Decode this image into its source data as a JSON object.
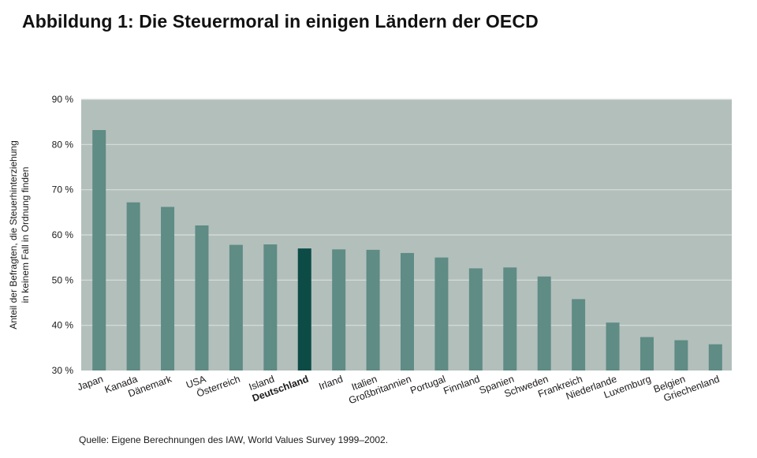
{
  "title": "Abbildung 1: Die Steuermoral in einigen Ländern der OECD",
  "source": "Quelle: Eigene Berechnungen des IAW, World Values Survey 1999–2002.",
  "colors": {
    "background_plot": "#b3bfbb",
    "bar": "#5f8c85",
    "bar_highlight": "#0d4b47",
    "grid": "#d8dfdc"
  },
  "chart_data": {
    "type": "bar",
    "title": "Abbildung 1: Die Steuermoral in einigen Ländern der OECD",
    "xlabel": "",
    "ylabel_lines": [
      "Anteil der Befragten, die Steuerhinterziehung",
      "in keinem Fall in Ordnung finden"
    ],
    "ylim": [
      30,
      90
    ],
    "yticks": [
      30,
      40,
      50,
      60,
      70,
      80,
      90
    ],
    "ytick_labels": [
      "30 %",
      "40 %",
      "50 %",
      "60 %",
      "70 %",
      "80 %",
      "90 %"
    ],
    "grid": true,
    "highlight": "Deutschland",
    "categories": [
      "Japan",
      "Kanada",
      "Dänemark",
      "USA",
      "Österreich",
      "Island",
      "Deutschland",
      "Irland",
      "Italien",
      "Großbritannien",
      "Portugal",
      "Finnland",
      "Spanien",
      "Schweden",
      "Frankreich",
      "Niederlande",
      "Luxemburg",
      "Belgien",
      "Griechenland"
    ],
    "values": [
      83.2,
      67.2,
      66.2,
      62.1,
      57.8,
      57.9,
      57.0,
      56.8,
      56.7,
      56.0,
      55.0,
      52.6,
      52.8,
      50.8,
      45.8,
      40.6,
      37.4,
      36.7,
      35.8
    ]
  }
}
